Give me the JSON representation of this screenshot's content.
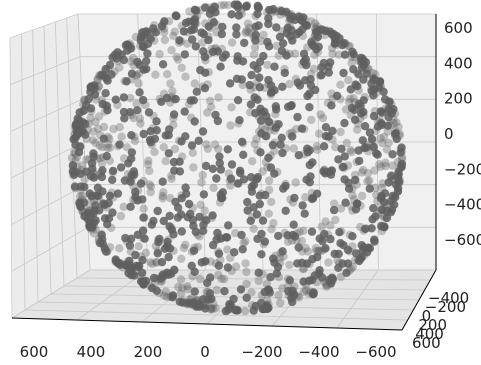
{
  "chart_data": {
    "type": "scatter",
    "projection": "3d",
    "title": "",
    "xlabel": "",
    "ylabel": "",
    "zlabel": "",
    "grid": true,
    "legend": "none",
    "xlim": [
      -600,
      600
    ],
    "ylim": [
      -600,
      600
    ],
    "zlim": [
      -600,
      600
    ],
    "x_ticks": [
      "600",
      "400",
      "200",
      "0",
      "−200",
      "−400",
      "−600"
    ],
    "y_ticks": [
      "−400",
      "−200",
      "0",
      "200",
      "400",
      "600"
    ],
    "z_ticks": [
      "600",
      "400",
      "200",
      "0",
      "−200",
      "−400",
      "−600"
    ],
    "series": [
      {
        "marker": "o",
        "color": "#5f5f5f",
        "alpha": 0.6,
        "description_shape": "points on the surface of a sphere",
        "radius": 600,
        "center": [
          0,
          0,
          0
        ],
        "point_count": 1500
      }
    ],
    "colors": {
      "pane_face": "#ececec",
      "pane_edge": "#ffffff",
      "grid": "#c8c8c8",
      "axis_line": "#000000"
    }
  }
}
